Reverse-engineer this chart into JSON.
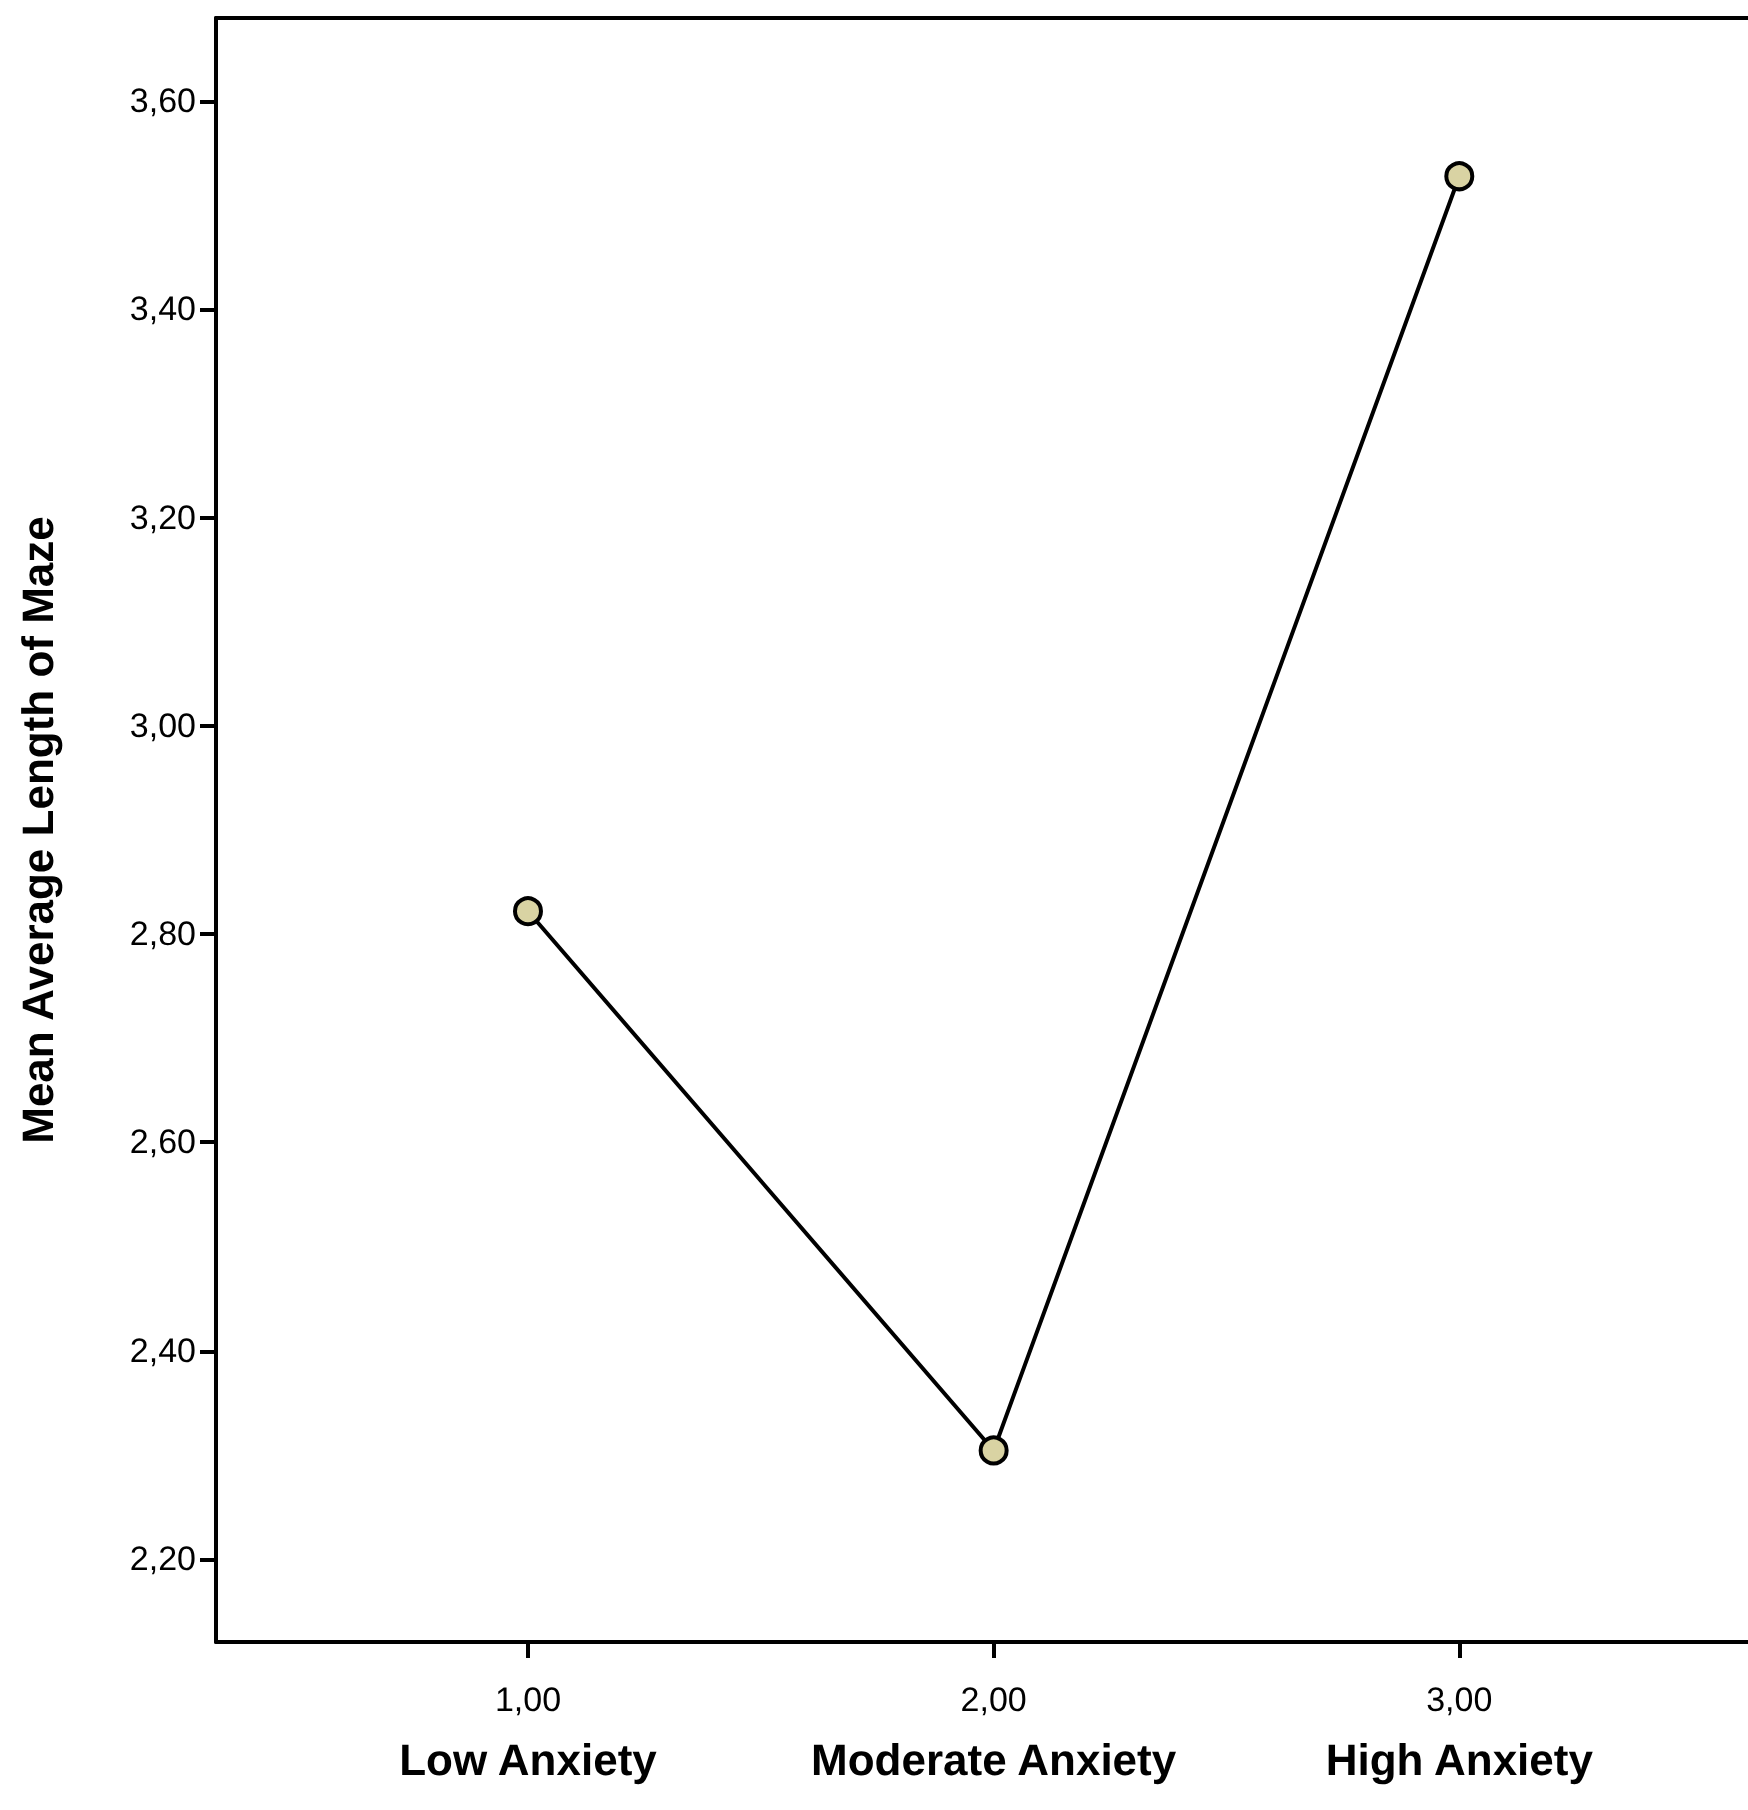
{
  "chart_data": {
    "type": "line",
    "ylabel": "Mean Average Length of Maze",
    "x": [
      1,
      2,
      3
    ],
    "series": [
      {
        "color": "#000000",
        "values": [
          2.822,
          2.304,
          3.528
        ]
      }
    ],
    "xlim": [
      0.33,
      3.62
    ],
    "xticks": [
      {
        "value": 1,
        "label": "1,00\nLow Anxiety"
      },
      {
        "value": 2,
        "label": "2,00\nModerate Anxiety"
      },
      {
        "value": 3,
        "label": "3,00\nHigh Anxiety"
      }
    ],
    "ylim": [
      2.12,
      3.68
    ],
    "yticks": [
      {
        "value": 2.2,
        "label": "2,20"
      },
      {
        "value": 2.4,
        "label": "2,40"
      },
      {
        "value": 2.6,
        "label": "2,60"
      },
      {
        "value": 2.8,
        "label": "2,80"
      },
      {
        "value": 3.0,
        "label": "3,00"
      },
      {
        "value": 3.2,
        "label": "3,20"
      },
      {
        "value": 3.4,
        "label": "3,40"
      },
      {
        "value": 3.6,
        "label": "3,60"
      }
    ],
    "marker": "circle",
    "line_style": "solid"
  }
}
